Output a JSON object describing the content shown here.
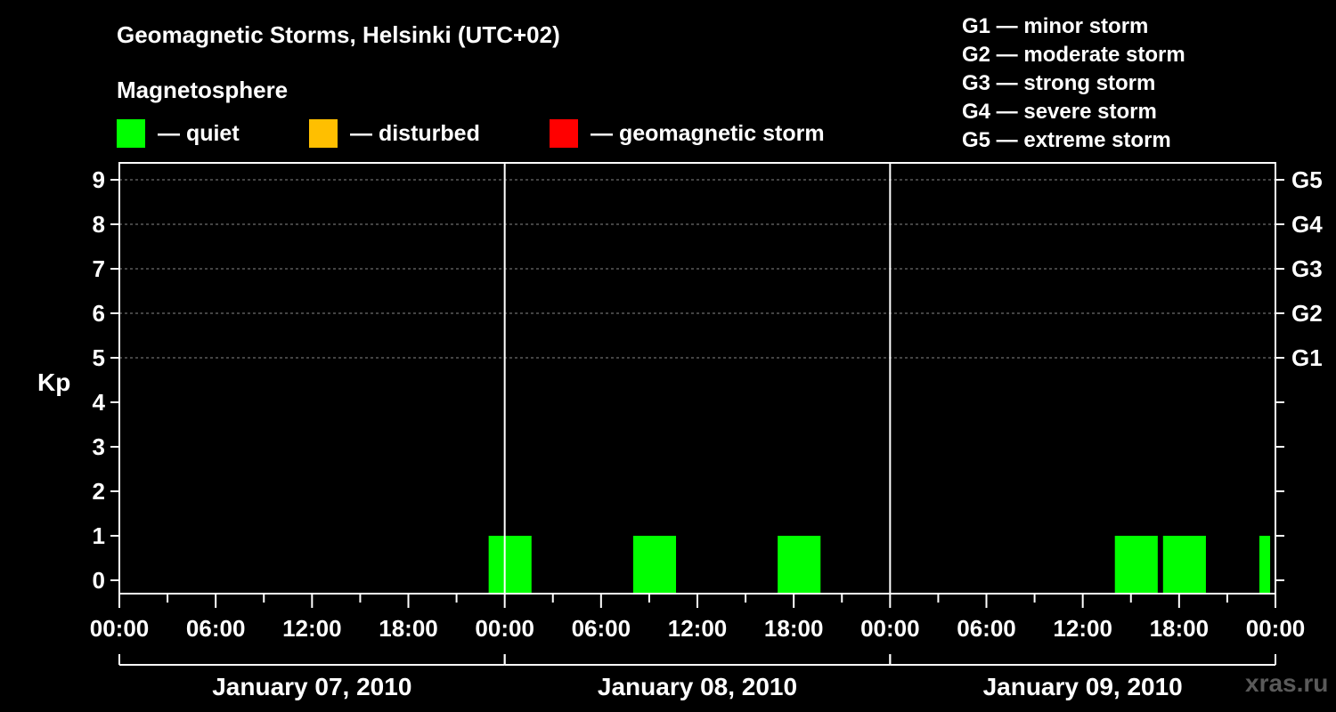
{
  "header": {
    "title": "Geomagnetic Storms, Helsinki (UTC+02)",
    "subtitle": "Magnetosphere"
  },
  "legend": [
    {
      "label": "— quiet",
      "color": "#00ff00"
    },
    {
      "label": "— disturbed",
      "color": "#ffbf00"
    },
    {
      "label": "— geomagnetic storm",
      "color": "#ff0000"
    }
  ],
  "storm_scale": [
    "G1 — minor storm",
    "G2 — moderate storm",
    "G3 — strong storm",
    "G4 — severe storm",
    "G5 — extreme storm"
  ],
  "watermark": "xras.ru",
  "chart_data": {
    "type": "bar",
    "title": "Geomagnetic Storms, Helsinki (UTC+02)",
    "ylabel": "Kp",
    "ylim": [
      0,
      9
    ],
    "y_ticks": [
      "0",
      "1",
      "2",
      "3",
      "4",
      "5",
      "6",
      "7",
      "8",
      "9"
    ],
    "right_axis_labels": [
      {
        "kp": 5,
        "label": "G1"
      },
      {
        "kp": 6,
        "label": "G2"
      },
      {
        "kp": 7,
        "label": "G3"
      },
      {
        "kp": 8,
        "label": "G4"
      },
      {
        "kp": 9,
        "label": "G5"
      }
    ],
    "x_range_hours": [
      0,
      72
    ],
    "x_tick_labels": [
      {
        "hour": 0,
        "label": "00:00"
      },
      {
        "hour": 6,
        "label": "06:00"
      },
      {
        "hour": 12,
        "label": "12:00"
      },
      {
        "hour": 18,
        "label": "18:00"
      },
      {
        "hour": 24,
        "label": "00:00"
      },
      {
        "hour": 30,
        "label": "06:00"
      },
      {
        "hour": 36,
        "label": "12:00"
      },
      {
        "hour": 42,
        "label": "18:00"
      },
      {
        "hour": 48,
        "label": "00:00"
      },
      {
        "hour": 54,
        "label": "06:00"
      },
      {
        "hour": 60,
        "label": "12:00"
      },
      {
        "hour": 66,
        "label": "18:00"
      },
      {
        "hour": 72,
        "label": "00:00"
      }
    ],
    "days": [
      "January 07, 2010",
      "January 08, 2010",
      "January 09, 2010"
    ],
    "grid_kp_levels": [
      5,
      6,
      7,
      8,
      9
    ],
    "bars": [
      {
        "start_hour": 23.0,
        "end_hour": 25.67,
        "kp": 1,
        "status": "quiet"
      },
      {
        "start_hour": 32.0,
        "end_hour": 34.67,
        "kp": 1,
        "status": "quiet"
      },
      {
        "start_hour": 41.0,
        "end_hour": 43.67,
        "kp": 1,
        "status": "quiet"
      },
      {
        "start_hour": 62.0,
        "end_hour": 64.67,
        "kp": 1,
        "status": "quiet"
      },
      {
        "start_hour": 65.0,
        "end_hour": 67.67,
        "kp": 1,
        "status": "quiet"
      },
      {
        "start_hour": 71.0,
        "end_hour": 71.67,
        "kp": 1,
        "status": "quiet"
      }
    ]
  }
}
